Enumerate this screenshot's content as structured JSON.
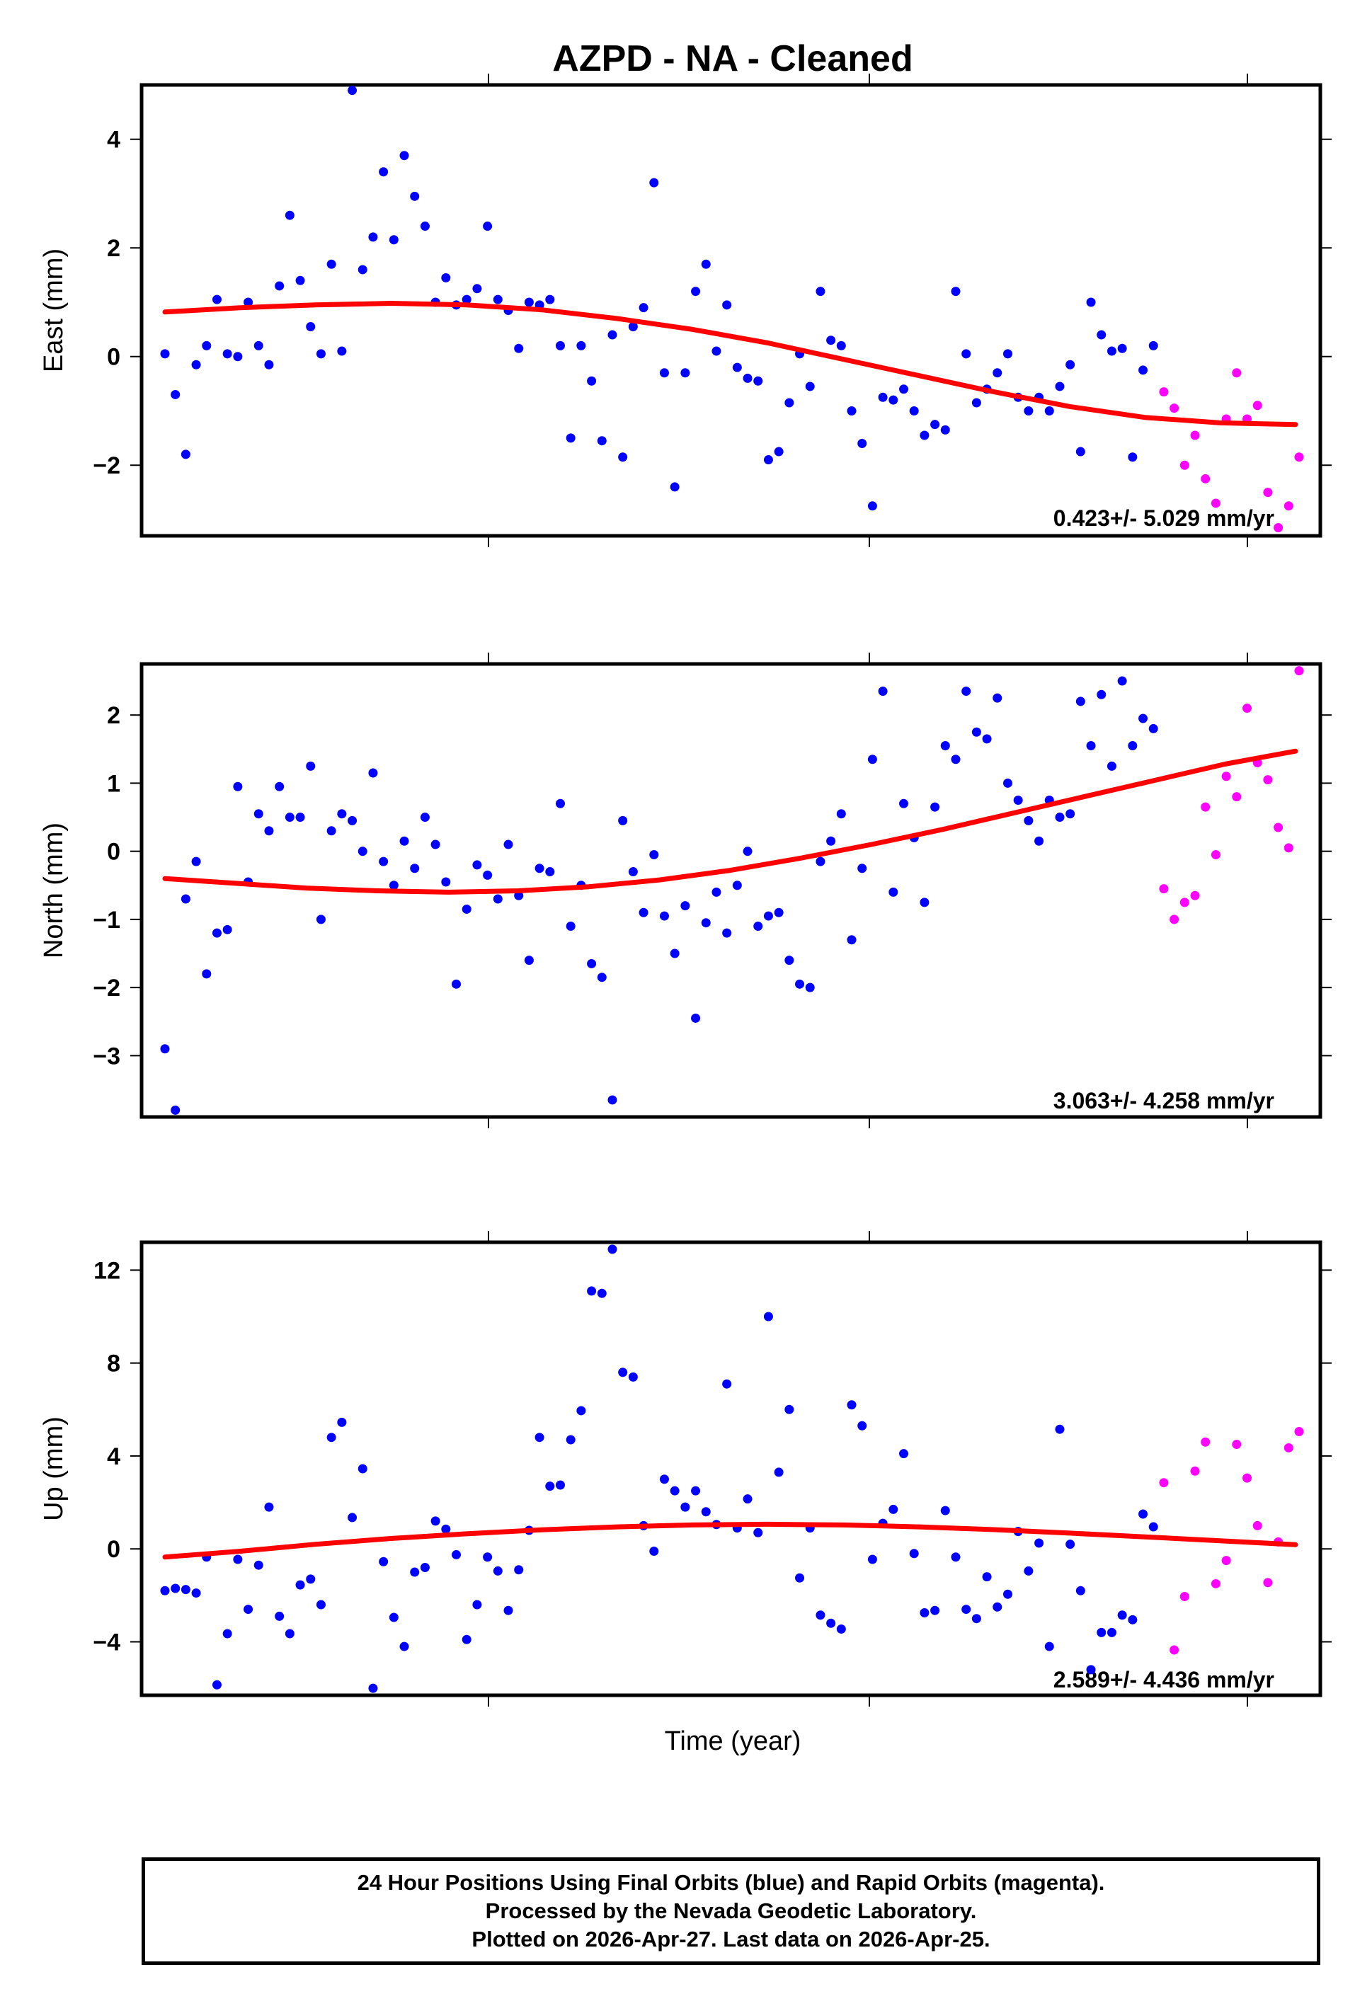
{
  "chart_data": {
    "title": "AZPD  - NA - Cleaned",
    "xlabel": "Time (year)",
    "colors": {
      "final": "#0000ff",
      "rapid": "#ff00ff",
      "fit": "#ff0000"
    },
    "panels": [
      {
        "type": "scatter",
        "ylabel": "East (mm)",
        "ylim": [
          -3.3,
          5.0
        ],
        "yticks": [
          -2,
          0,
          2,
          4
        ],
        "ytick_labels": [
          "−2",
          "0",
          "2",
          "4"
        ],
        "rate_label": "0.423+/- 5.029 mm/yr",
        "final": [
          0.05,
          -0.7,
          -1.8,
          -0.15,
          0.2,
          1.05,
          0.05,
          0.0,
          1.0,
          0.2,
          -0.15,
          1.3,
          2.6,
          1.4,
          0.55,
          0.05,
          1.7,
          0.1,
          4.9,
          1.6,
          2.2,
          3.4,
          2.15,
          3.7,
          2.95,
          2.4,
          1.0,
          1.45,
          0.95,
          1.05,
          1.25,
          2.4,
          1.05,
          0.85,
          0.15,
          1.0,
          0.95,
          1.05,
          0.2,
          -1.5,
          0.2,
          -0.45,
          -1.55,
          0.4,
          -1.85,
          0.55,
          0.9,
          3.2,
          -0.3,
          -2.4,
          -0.3,
          1.2,
          1.7,
          0.1,
          0.95,
          -0.2,
          -0.4,
          -0.45,
          -1.9,
          -1.75,
          -0.85,
          0.05,
          -0.55,
          1.2,
          0.3,
          0.2,
          -1.0,
          -1.6,
          -2.75,
          -0.75,
          -0.8,
          -0.6,
          -1.0,
          -1.45,
          -1.25,
          -1.35,
          1.2,
          0.05,
          -0.85,
          -0.6,
          -0.3,
          0.05,
          -0.75,
          -1.0,
          -0.75,
          -1.0,
          -0.55,
          -0.15,
          -1.75,
          1.0,
          0.4,
          0.1,
          0.15,
          -1.85,
          -0.25,
          0.2
        ],
        "rapid": [
          -0.65,
          -0.95,
          -2.0,
          -1.45,
          -2.25,
          -2.7,
          -1.15,
          -0.3,
          -1.15,
          -0.9,
          -2.5,
          -3.15,
          -2.75,
          -1.85
        ],
        "fit": [
          0.82,
          0.9,
          0.95,
          0.98,
          0.95,
          0.86,
          0.7,
          0.5,
          0.25,
          -0.05,
          -0.35,
          -0.65,
          -0.92,
          -1.12,
          -1.22,
          -1.25
        ]
      },
      {
        "type": "scatter",
        "ylabel": "North (mm)",
        "ylim": [
          -3.9,
          2.75
        ],
        "yticks": [
          -3,
          -2,
          -1,
          0,
          1,
          2
        ],
        "ytick_labels": [
          "−3",
          "−2",
          "−1",
          "0",
          "1",
          "2"
        ],
        "rate_label": "3.063+/- 4.258 mm/yr",
        "final": [
          -2.9,
          -3.8,
          -0.7,
          -0.15,
          -1.8,
          -1.2,
          -1.15,
          0.95,
          -0.45,
          0.55,
          0.3,
          0.95,
          0.5,
          0.5,
          1.25,
          -1.0,
          0.3,
          0.55,
          0.45,
          0.0,
          1.15,
          -0.15,
          -0.5,
          0.15,
          -0.25,
          0.5,
          0.1,
          -0.45,
          -1.95,
          -0.85,
          -0.2,
          -0.35,
          -0.7,
          0.1,
          -0.65,
          -1.6,
          -0.25,
          -0.3,
          0.7,
          -1.1,
          -0.5,
          -1.65,
          -1.85,
          -3.65,
          0.45,
          -0.3,
          -0.9,
          -0.05,
          -0.95,
          -1.5,
          -0.8,
          -2.45,
          -1.05,
          -0.6,
          -1.2,
          -0.5,
          0.0,
          -1.1,
          -0.95,
          -0.9,
          -1.6,
          -1.95,
          -2.0,
          -0.15,
          0.15,
          0.55,
          -1.3,
          -0.25,
          1.35,
          2.35,
          -0.6,
          0.7,
          0.2,
          -0.75,
          0.65,
          1.55,
          1.35,
          2.35,
          1.75,
          1.65,
          2.25,
          1.0,
          0.75,
          0.45,
          0.15,
          0.75,
          0.5,
          0.55,
          2.2,
          1.55,
          2.3,
          1.25,
          2.5,
          1.55,
          1.95,
          1.8
        ],
        "rapid": [
          -0.55,
          -1.0,
          -0.75,
          -0.65,
          0.65,
          -0.05,
          1.1,
          0.8,
          2.1,
          1.3,
          1.05,
          0.35,
          0.05,
          2.65
        ],
        "fit": [
          -0.4,
          -0.47,
          -0.54,
          -0.58,
          -0.6,
          -0.58,
          -0.52,
          -0.42,
          -0.28,
          -0.1,
          0.1,
          0.32,
          0.56,
          0.8,
          1.04,
          1.28,
          1.47
        ]
      },
      {
        "type": "scatter",
        "ylabel": "Up (mm)",
        "ylim": [
          -6.3,
          13.2
        ],
        "yticks": [
          -4,
          0,
          4,
          8,
          12
        ],
        "ytick_labels": [
          "−4",
          "0",
          "4",
          "8",
          "12"
        ],
        "rate_label": "2.589+/- 4.436 mm/yr",
        "final": [
          -1.8,
          -1.7,
          -1.75,
          -1.9,
          -0.35,
          -5.85,
          -3.65,
          -0.45,
          -2.6,
          -0.7,
          1.8,
          -2.9,
          -3.65,
          -1.55,
          -1.3,
          -2.4,
          4.8,
          5.45,
          1.35,
          3.45,
          -6.0,
          -0.55,
          -2.95,
          -4.2,
          -1.0,
          -0.8,
          1.2,
          0.85,
          -0.25,
          -3.9,
          -2.4,
          -0.35,
          -0.95,
          -2.65,
          -0.9,
          0.8,
          4.8,
          2.7,
          2.75,
          4.7,
          5.95,
          11.1,
          11.0,
          12.9,
          7.6,
          7.4,
          1.0,
          -0.1,
          3.0,
          2.5,
          1.8,
          2.5,
          1.6,
          1.05,
          7.1,
          0.9,
          2.15,
          0.7,
          10.0,
          3.3,
          6.0,
          -1.25,
          0.9,
          -2.85,
          -3.2,
          -3.45,
          6.2,
          5.3,
          -0.45,
          1.1,
          1.7,
          4.1,
          -0.2,
          -2.75,
          -2.65,
          1.65,
          -0.35,
          -2.6,
          -3.0,
          -1.2,
          -2.5,
          -1.95,
          0.75,
          -0.95,
          0.25,
          -4.2,
          5.15,
          0.2,
          -1.8,
          -5.2,
          -3.6,
          -3.6,
          -2.85,
          -3.05,
          1.5,
          0.95
        ],
        "rapid": [
          2.85,
          -4.35,
          -2.05,
          3.35,
          4.6,
          -1.5,
          -0.5,
          4.5,
          3.05,
          1.0,
          -1.45,
          0.3,
          4.35,
          5.05
        ],
        "fit": [
          -0.35,
          -0.1,
          0.2,
          0.45,
          0.65,
          0.82,
          0.95,
          1.03,
          1.06,
          1.03,
          0.95,
          0.83,
          0.68,
          0.52,
          0.35,
          0.18
        ]
      }
    ]
  },
  "footer": {
    "line1": "24 Hour Positions Using Final Orbits (blue) and Rapid Orbits (magenta).",
    "line2": "Processed by the Nevada Geodetic Laboratory.",
    "line3": "Plotted on 2026-Apr-27. Last data on 2026-Apr-25."
  }
}
